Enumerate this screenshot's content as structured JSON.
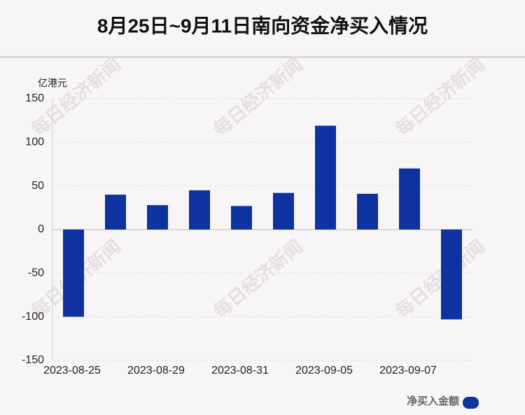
{
  "chart_data": {
    "type": "bar",
    "title": "8月25日~9月11日南向资金净买入情况",
    "y_label": "亿港元",
    "watermark": "每日经济新闻",
    "categories": [
      "2023-08-25",
      null,
      "2023-08-29",
      null,
      "2023-08-31",
      null,
      "2023-09-05",
      null,
      "2023-09-07",
      null
    ],
    "series": [
      {
        "name": "净买入金额",
        "color": "#0e33a0",
        "values": [
          -100,
          40,
          28,
          45,
          27,
          42,
          119,
          41,
          70,
          -103
        ]
      }
    ],
    "ylim": [
      -150,
      150
    ],
    "yticks": [
      -150,
      -100,
      -50,
      0,
      50,
      100,
      150
    ],
    "grid": true,
    "legend": "bottom-right"
  }
}
